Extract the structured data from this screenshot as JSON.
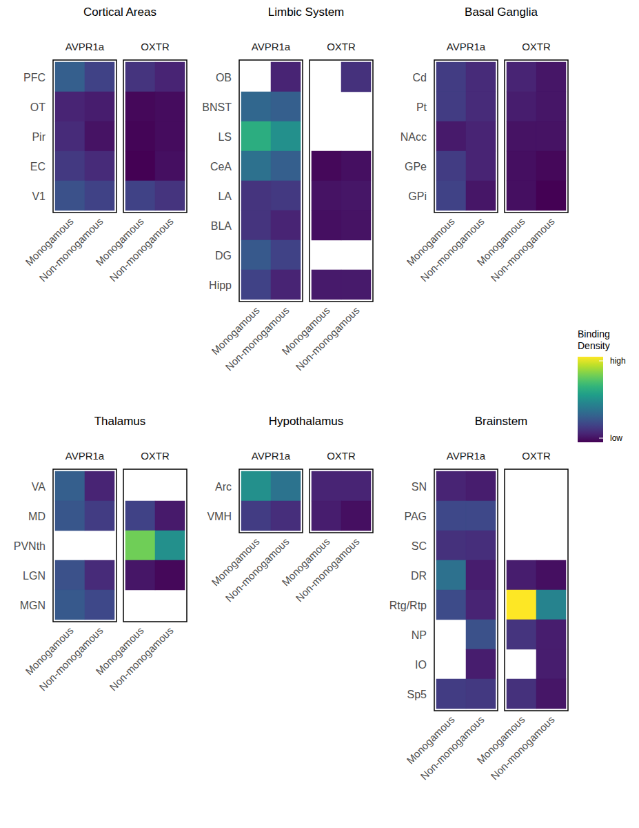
{
  "chart_data": [
    {
      "type": "heatmap",
      "title": "Cortical Areas",
      "rows": [
        "PFC",
        "OT",
        "Pir",
        "EC",
        "V1"
      ],
      "columns": [
        "Monogamous",
        "Non-monogamous"
      ],
      "panels": [
        {
          "name": "AVPR1a",
          "values": [
            [
              0.3,
              0.2
            ],
            [
              0.1,
              0.08
            ],
            [
              0.12,
              0.05
            ],
            [
              0.17,
              0.12
            ],
            [
              0.25,
              0.2
            ]
          ]
        },
        {
          "name": "OXTR",
          "values": [
            [
              0.15,
              0.1
            ],
            [
              0.02,
              0.03
            ],
            [
              0.01,
              0.03
            ],
            [
              0.0,
              0.04
            ],
            [
              0.2,
              0.15
            ]
          ]
        }
      ]
    },
    {
      "type": "heatmap",
      "title": "Limbic System",
      "rows": [
        "OB",
        "BNST",
        "LS",
        "CeA",
        "LA",
        "BLA",
        "DG",
        "Hipp"
      ],
      "columns": [
        "Monogamous",
        "Non-monogamous"
      ],
      "panels": [
        {
          "name": "AVPR1a",
          "values": [
            [
              null,
              0.1
            ],
            [
              0.33,
              0.3
            ],
            [
              0.62,
              0.5
            ],
            [
              0.37,
              0.3
            ],
            [
              0.15,
              0.17
            ],
            [
              0.15,
              0.1
            ],
            [
              0.28,
              0.2
            ],
            [
              0.2,
              0.1
            ]
          ]
        },
        {
          "name": "OXTR",
          "values": [
            [
              null,
              0.14
            ],
            [
              null,
              null
            ],
            [
              null,
              null
            ],
            [
              0.02,
              0.04
            ],
            [
              0.05,
              0.06
            ],
            [
              0.04,
              0.05
            ],
            [
              null,
              null
            ],
            [
              0.07,
              0.07
            ]
          ]
        }
      ]
    },
    {
      "type": "heatmap",
      "title": "Basal Ganglia",
      "rows": [
        "Cd",
        "Pt",
        "NAcc",
        "GPe",
        "GPi"
      ],
      "columns": [
        "Monogamous",
        "Non-monogamous"
      ],
      "panels": [
        {
          "name": "AVPR1a",
          "values": [
            [
              0.18,
              0.12
            ],
            [
              0.18,
              0.12
            ],
            [
              0.07,
              0.1
            ],
            [
              0.18,
              0.1
            ],
            [
              0.2,
              0.06
            ]
          ]
        },
        {
          "name": "OXTR",
          "values": [
            [
              0.1,
              0.06
            ],
            [
              0.08,
              0.06
            ],
            [
              0.05,
              0.05
            ],
            [
              0.04,
              0.02
            ],
            [
              0.04,
              0.0
            ]
          ]
        }
      ],
      "colorbar": {
        "title": "Binding Density",
        "range": [
          0,
          1
        ],
        "ticks": [
          {
            "value": 1,
            "label": "high"
          },
          {
            "value": 0,
            "label": "low"
          }
        ]
      }
    },
    {
      "type": "heatmap",
      "title": "Thalamus",
      "rows": [
        "VA",
        "MD",
        "PVNth",
        "LGN",
        "MGN"
      ],
      "columns": [
        "Monogamous",
        "Non-monogamous"
      ],
      "panels": [
        {
          "name": "AVPR1a",
          "values": [
            [
              0.3,
              0.1
            ],
            [
              0.27,
              0.18
            ],
            [
              null,
              null
            ],
            [
              0.25,
              0.12
            ],
            [
              0.28,
              0.22
            ]
          ]
        },
        {
          "name": "OXTR",
          "values": [
            [
              null,
              null
            ],
            [
              0.2,
              0.07
            ],
            [
              0.78,
              0.5
            ],
            [
              0.06,
              0.02
            ],
            [
              null,
              null
            ]
          ]
        }
      ]
    },
    {
      "type": "heatmap",
      "title": "Hypothalamus",
      "rows": [
        "Arc",
        "VMH"
      ],
      "columns": [
        "Monogamous",
        "Non-monogamous"
      ],
      "panels": [
        {
          "name": "AVPR1a",
          "values": [
            [
              0.5,
              0.38
            ],
            [
              0.18,
              0.13
            ]
          ]
        },
        {
          "name": "OXTR",
          "values": [
            [
              0.1,
              0.1
            ],
            [
              0.08,
              0.04
            ]
          ]
        }
      ]
    },
    {
      "type": "heatmap",
      "title": "Brainstem",
      "rows": [
        "SN",
        "PAG",
        "SC",
        "DR",
        "Rtg/Rtp",
        "NP",
        "IO",
        "Sp5"
      ],
      "columns": [
        "Monogamous",
        "Non-monogamous"
      ],
      "panels": [
        {
          "name": "AVPR1a",
          "values": [
            [
              0.1,
              0.08
            ],
            [
              0.22,
              0.22
            ],
            [
              0.14,
              0.13
            ],
            [
              0.37,
              0.08
            ],
            [
              0.23,
              0.1
            ],
            [
              null,
              0.25
            ],
            [
              null,
              0.08
            ],
            [
              0.18,
              0.17
            ]
          ]
        },
        {
          "name": "OXTR",
          "values": [
            [
              null,
              null
            ],
            [
              null,
              null
            ],
            [
              null,
              null
            ],
            [
              0.08,
              0.04
            ],
            [
              1.0,
              0.45
            ],
            [
              0.15,
              0.08
            ],
            [
              null,
              0.08
            ],
            [
              0.14,
              0.06
            ]
          ]
        }
      ]
    }
  ]
}
